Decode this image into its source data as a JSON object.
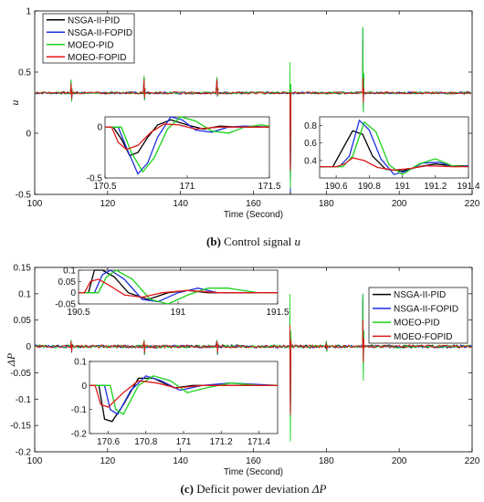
{
  "chart_data": [
    {
      "type": "line",
      "panel": "b",
      "caption": {
        "label": "(b)",
        "text": "Control signal",
        "symbol": "u"
      },
      "ylabel": "u",
      "xlabel": "Time (Second)",
      "xlim": [
        100,
        220
      ],
      "ylim": [
        -0.5,
        1
      ],
      "xticks": [
        100,
        120,
        140,
        160,
        180,
        200,
        220
      ],
      "yticks": [
        -0.5,
        0,
        0.5,
        1
      ],
      "yticklabels": [
        "-0.5",
        "0",
        "0.5",
        "1"
      ],
      "baseline": 0.33,
      "legend": {
        "position": "top-left"
      },
      "series": [
        {
          "name": "NSGA-II-PID",
          "color": "#000000",
          "spikes": [
            [
              110,
              0.42,
              0.27
            ],
            [
              130,
              0.45,
              0.28
            ],
            [
              150,
              0.45,
              0.31
            ],
            [
              170,
              0.35,
              -0.5
            ],
            [
              190,
              0.75,
              0.2
            ]
          ]
        },
        {
          "name": "NSGA-II-FOPID",
          "color": "#1f2fe0",
          "spikes": [
            [
              110,
              0.43,
              0.26
            ],
            [
              130,
              0.46,
              0.27
            ],
            [
              150,
              0.46,
              0.3
            ],
            [
              170,
              0.4,
              -0.48
            ],
            [
              190,
              0.86,
              0.18
            ]
          ]
        },
        {
          "name": "MOEO-PID",
          "color": "#19d31a",
          "spikes": [
            [
              110,
              0.44,
              0.26
            ],
            [
              130,
              0.47,
              0.27
            ],
            [
              150,
              0.46,
              0.3
            ],
            [
              170,
              0.58,
              -0.45
            ],
            [
              190,
              0.87,
              0.17
            ]
          ]
        },
        {
          "name": "MOEO-FOPID",
          "color": "#e01818",
          "spikes": [
            [
              110,
              0.41,
              0.28
            ],
            [
              130,
              0.44,
              0.29
            ],
            [
              150,
              0.44,
              0.31
            ],
            [
              170,
              0.34,
              -0.3
            ],
            [
              190,
              0.45,
              0.25
            ]
          ]
        }
      ],
      "insets": [
        {
          "xlim": [
            170.5,
            171.5
          ],
          "ylim": [
            -0.5,
            0.1
          ],
          "xticks": [
            170.5,
            171,
            171.5
          ],
          "xticklabels": [
            "170.5",
            "171",
            "171.5"
          ],
          "yticks": [
            -0.5,
            0
          ],
          "yticklabels": [
            "-0.5",
            "0"
          ],
          "series": [
            {
              "name": "NSGA-II-PID",
              "x": [
                170.5,
                170.55,
                170.6,
                170.65,
                170.7,
                170.76,
                170.82,
                170.9,
                171.0,
                171.1,
                171.2,
                171.3,
                171.4,
                171.5
              ],
              "y": [
                0,
                0,
                -0.12,
                -0.28,
                -0.25,
                -0.1,
                0.02,
                0.07,
                0.02,
                -0.02,
                0.01,
                0.0,
                0.0,
                0.0
              ]
            },
            {
              "name": "NSGA-II-FOPID",
              "x": [
                170.5,
                170.58,
                170.63,
                170.7,
                170.76,
                170.82,
                170.9,
                170.97,
                171.05,
                171.15,
                171.25,
                171.35,
                171.5
              ],
              "y": [
                0,
                0,
                -0.2,
                -0.46,
                -0.35,
                -0.1,
                0.1,
                0.07,
                -0.03,
                -0.05,
                0.0,
                0.01,
                0.0
              ]
            },
            {
              "name": "MOEO-PID",
              "x": [
                170.5,
                170.6,
                170.66,
                170.73,
                170.8,
                170.88,
                170.96,
                171.05,
                171.15,
                171.25,
                171.35,
                171.45,
                171.5
              ],
              "y": [
                0,
                0,
                -0.25,
                -0.44,
                -0.3,
                -0.02,
                0.1,
                0.06,
                -0.04,
                -0.06,
                0.0,
                0.02,
                0.01
              ]
            },
            {
              "name": "MOEO-FOPID",
              "x": [
                170.5,
                170.54,
                170.58,
                170.63,
                170.7,
                170.78,
                170.86,
                170.95,
                171.05,
                171.2,
                171.35,
                171.5
              ],
              "y": [
                0,
                0,
                -0.15,
                -0.22,
                -0.18,
                -0.05,
                0.03,
                0.02,
                -0.02,
                0.0,
                0.0,
                0.0
              ]
            }
          ]
        },
        {
          "xlim": [
            190.5,
            191.4
          ],
          "ylim": [
            0.2,
            0.9
          ],
          "xticks": [
            190.6,
            190.8,
            191,
            191.2,
            191.4
          ],
          "xticklabels": [
            "190.6",
            "190.8",
            "191",
            "191.2",
            "191.4"
          ],
          "yticks": [
            0.4,
            0.6,
            0.8
          ],
          "yticklabels": [
            "0.4",
            "0.6",
            "0.8"
          ],
          "series": [
            {
              "name": "NSGA-II-PID",
              "x": [
                190.5,
                190.58,
                190.63,
                190.7,
                190.76,
                190.82,
                190.9,
                191.0,
                191.1,
                191.2,
                191.3,
                191.4
              ],
              "y": [
                0.33,
                0.33,
                0.5,
                0.74,
                0.7,
                0.45,
                0.3,
                0.28,
                0.33,
                0.36,
                0.34,
                0.34
              ]
            },
            {
              "name": "NSGA-II-FOPID",
              "x": [
                190.5,
                190.62,
                190.68,
                190.74,
                190.8,
                190.87,
                190.95,
                191.03,
                191.12,
                191.22,
                191.32,
                191.4
              ],
              "y": [
                0.33,
                0.33,
                0.45,
                0.86,
                0.75,
                0.42,
                0.24,
                0.28,
                0.37,
                0.38,
                0.33,
                0.34
              ]
            },
            {
              "name": "MOEO-PID",
              "x": [
                190.5,
                190.64,
                190.7,
                190.77,
                190.84,
                190.92,
                191.0,
                191.1,
                191.2,
                191.3,
                191.4
              ],
              "y": [
                0.33,
                0.33,
                0.45,
                0.84,
                0.73,
                0.35,
                0.24,
                0.36,
                0.42,
                0.34,
                0.33
              ]
            },
            {
              "name": "MOEO-FOPID",
              "x": [
                190.5,
                190.6,
                190.65,
                190.7,
                190.77,
                190.85,
                190.95,
                191.05,
                191.15,
                191.3,
                191.4
              ],
              "y": [
                0.33,
                0.33,
                0.36,
                0.43,
                0.4,
                0.32,
                0.29,
                0.31,
                0.34,
                0.33,
                0.33
              ]
            }
          ]
        }
      ]
    },
    {
      "type": "line",
      "panel": "c",
      "caption": {
        "label": "(c)",
        "text": "Deficit power deviation",
        "symbol": "ΔP"
      },
      "ylabel": "ΔP",
      "xlabel": "Time (Second)",
      "xlim": [
        100,
        220
      ],
      "ylim": [
        -0.2,
        0.15
      ],
      "xticks": [
        100,
        120,
        140,
        160,
        180,
        200,
        220
      ],
      "yticks": [
        -0.2,
        -0.15,
        -0.1,
        -0.05,
        0,
        0.05,
        0.1,
        0.15
      ],
      "yticklabels": [
        "-0.2",
        "-0.15",
        "-0.1",
        "-0.05",
        "0",
        "0.05",
        "0.1",
        "0.15"
      ],
      "baseline": 0,
      "legend": {
        "position": "top-right"
      },
      "series": [
        {
          "name": "NSGA-II-PID",
          "color": "#000000",
          "spikes": [
            [
              110,
              0.01,
              -0.01
            ],
            [
              130,
              0.01,
              -0.015
            ],
            [
              150,
              0.01,
              -0.015
            ],
            [
              170,
              0.03,
              -0.15
            ],
            [
              180,
              0.01,
              -0.01
            ],
            [
              190,
              0.09,
              -0.02
            ]
          ]
        },
        {
          "name": "NSGA-II-FOPID",
          "color": "#1f2fe0",
          "spikes": [
            [
              110,
              0.012,
              -0.012
            ],
            [
              130,
              0.012,
              -0.016
            ],
            [
              150,
              0.012,
              -0.016
            ],
            [
              170,
              0.06,
              -0.16
            ],
            [
              180,
              0.008,
              -0.008
            ],
            [
              190,
              0.1,
              -0.05
            ]
          ]
        },
        {
          "name": "MOEO-PID",
          "color": "#19d31a",
          "spikes": [
            [
              110,
              0.012,
              -0.01
            ],
            [
              130,
              0.012,
              -0.015
            ],
            [
              150,
              0.012,
              -0.015
            ],
            [
              170,
              0.1,
              -0.18
            ],
            [
              180,
              0.01,
              -0.01
            ],
            [
              190,
              0.1,
              -0.065
            ]
          ]
        },
        {
          "name": "MOEO-FOPID",
          "color": "#e01818",
          "spikes": [
            [
              110,
              0.01,
              -0.01
            ],
            [
              130,
              0.01,
              -0.012
            ],
            [
              150,
              0.01,
              -0.012
            ],
            [
              170,
              0.04,
              -0.13
            ],
            [
              180,
              0.006,
              -0.006
            ],
            [
              190,
              0.05,
              -0.03
            ]
          ]
        }
      ],
      "insets": [
        {
          "xlim": [
            190.5,
            191.5
          ],
          "ylim": [
            -0.05,
            0.1
          ],
          "xticks": [
            190.5,
            191,
            191.5
          ],
          "xticklabels": [
            "190.5",
            "191",
            "191.5"
          ],
          "yticks": [
            -0.05,
            0,
            0.05,
            0.1
          ],
          "yticklabels": [
            "-0.05",
            "0",
            "0.05",
            "0.1"
          ],
          "series": [
            {
              "name": "NSGA-II-PID",
              "x": [
                190.5,
                190.55,
                190.58,
                190.62,
                190.68,
                190.75,
                190.85,
                190.95,
                191.05,
                191.15,
                191.3,
                191.5
              ],
              "y": [
                0,
                0,
                0.1,
                0.1,
                0.07,
                0.0,
                -0.03,
                0.0,
                0.01,
                0.0,
                0.0,
                0.0
              ]
            },
            {
              "name": "NSGA-II-FOPID",
              "x": [
                190.5,
                190.58,
                190.62,
                190.66,
                190.73,
                190.82,
                190.9,
                191.0,
                191.1,
                191.2,
                191.35,
                191.5
              ],
              "y": [
                0,
                0,
                0.08,
                0.1,
                0.06,
                -0.03,
                -0.04,
                0.0,
                0.02,
                0.0,
                0.0,
                0.0
              ]
            },
            {
              "name": "MOEO-PID",
              "x": [
                190.5,
                190.6,
                190.64,
                190.69,
                190.77,
                190.86,
                190.95,
                191.05,
                191.15,
                191.25,
                191.4,
                191.5
              ],
              "y": [
                0,
                0,
                0.07,
                0.1,
                0.06,
                -0.03,
                -0.05,
                -0.01,
                0.02,
                0.02,
                0.0,
                0.0
              ]
            },
            {
              "name": "MOEO-FOPID",
              "x": [
                190.5,
                190.53,
                190.56,
                190.6,
                190.66,
                190.73,
                190.82,
                190.92,
                191.05,
                191.2,
                191.5
              ],
              "y": [
                0,
                0,
                0.05,
                0.06,
                0.03,
                -0.01,
                -0.02,
                0.0,
                0.01,
                0.0,
                0.0
              ]
            }
          ]
        },
        {
          "xlim": [
            170.5,
            171.5
          ],
          "ylim": [
            -0.2,
            0.1
          ],
          "xticks": [
            170.6,
            170.8,
            171,
            171.2,
            171.4
          ],
          "xticklabels": [
            "170.6",
            "170.8",
            "171",
            "171.2",
            "171.4"
          ],
          "yticks": [
            -0.2,
            -0.1,
            0,
            0.1
          ],
          "yticklabels": [
            "-0.2",
            "-0.1",
            "0",
            "0.1"
          ],
          "series": [
            {
              "name": "NSGA-II-PID",
              "x": [
                170.5,
                170.55,
                170.58,
                170.62,
                170.68,
                170.76,
                170.84,
                170.95,
                171.05,
                171.2,
                171.35,
                171.5
              ],
              "y": [
                0,
                0,
                -0.14,
                -0.15,
                -0.08,
                0.03,
                0.03,
                -0.01,
                0.0,
                0.0,
                0.0,
                0.0
              ]
            },
            {
              "name": "NSGA-II-FOPID",
              "x": [
                170.5,
                170.58,
                170.61,
                170.65,
                170.72,
                170.8,
                170.88,
                170.98,
                171.1,
                171.25,
                171.5
              ],
              "y": [
                0,
                0,
                -0.1,
                -0.12,
                -0.02,
                0.04,
                0.02,
                -0.02,
                0.0,
                0.01,
                0.0
              ]
            },
            {
              "name": "MOEO-PID",
              "x": [
                170.5,
                170.61,
                170.64,
                170.68,
                170.76,
                170.84,
                170.93,
                171.02,
                171.12,
                171.25,
                171.4,
                171.5
              ],
              "y": [
                0,
                0,
                -0.1,
                -0.12,
                0.0,
                0.04,
                0.02,
                -0.03,
                -0.01,
                0.01,
                0.0,
                0.0
              ]
            },
            {
              "name": "MOEO-FOPID",
              "x": [
                170.5,
                170.53,
                170.56,
                170.6,
                170.68,
                170.76,
                170.86,
                170.96,
                171.1,
                171.3,
                171.5
              ],
              "y": [
                0,
                0,
                -0.08,
                -0.09,
                -0.03,
                0.02,
                0.01,
                -0.01,
                0.0,
                0.0,
                0.0
              ]
            }
          ]
        }
      ]
    }
  ]
}
